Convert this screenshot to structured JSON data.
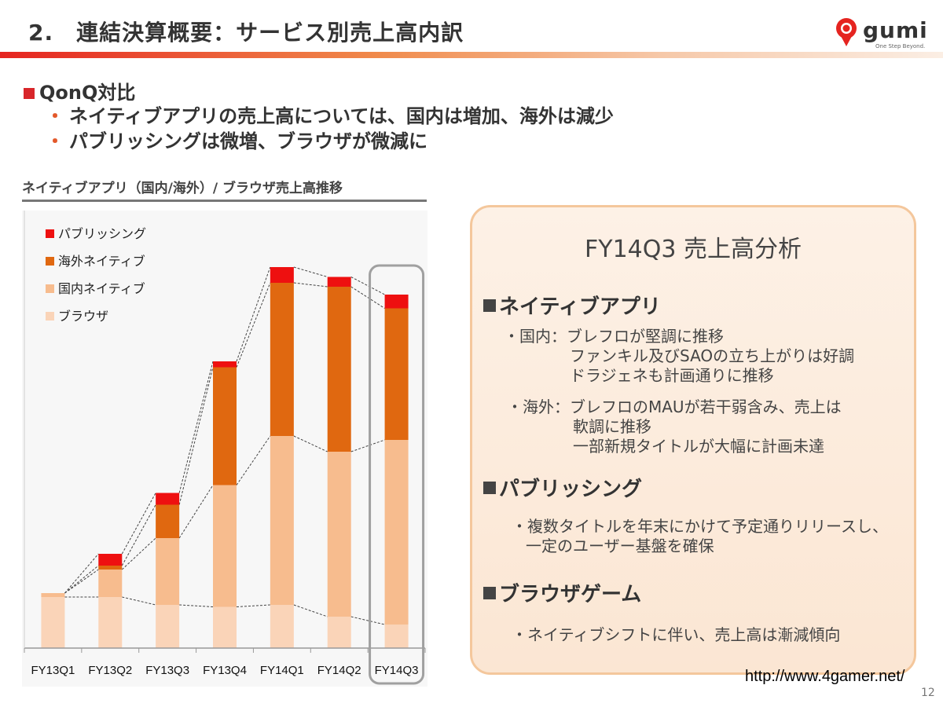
{
  "slide": {
    "title": "2.　連結決算概要：サービス別売上高内訳",
    "page_number": "12",
    "source_url": "http://www.4gamer.net/"
  },
  "logo": {
    "word": "gumi",
    "tagline": "One Step Beyond."
  },
  "qonq": {
    "heading": "QonQ対比",
    "points": [
      "ネイティブアプリの売上高については、国内は増加、海外は減少",
      "パブリッシングは微増、ブラウザが微減に"
    ]
  },
  "chart_heading": "ネイティブアプリ（国内/海外）/ ブラウザ売上高推移",
  "chart_data": {
    "type": "bar",
    "stacked": true,
    "categories": [
      "FY13Q1",
      "FY13Q2",
      "FY13Q3",
      "FY13Q4",
      "FY14Q1",
      "FY14Q2",
      "FY14Q3"
    ],
    "series": [
      {
        "name": "ブラウザ",
        "color": "#fad4b8",
        "values": [
          13,
          13,
          11,
          10.5,
          11,
          8,
          6
        ]
      },
      {
        "name": "国内ネイティブ",
        "color": "#f7bc8e",
        "values": [
          1,
          7,
          17,
          31,
          43,
          42,
          47
        ]
      },
      {
        "name": "海外ネイティブ",
        "color": "#e06810",
        "values": [
          0,
          1,
          8.5,
          30,
          39,
          42,
          33.5
        ]
      },
      {
        "name": "パブリッシング",
        "color": "#ee1010",
        "values": [
          0,
          3,
          3,
          1.5,
          4,
          2.5,
          3.5
        ]
      }
    ],
    "legend": [
      "パブリッシング",
      "海外ネイティブ",
      "国内ネイティブ",
      "ブラウザ"
    ],
    "legend_position": "top-left",
    "ylim": [
      0,
      100
    ],
    "y_axis_visible": false,
    "grid": false,
    "connector_lines": true,
    "highlighted_category": "FY14Q3"
  },
  "analysis": {
    "title": "FY14Q3 売上高分析",
    "sections": [
      {
        "heading": "ネイティブアプリ",
        "lines": [
          "・国内：ブレフロが堅調に推移",
          "ファンキル及びSAOの立ち上がりは好調",
          "ドラジェネも計画通りに推移",
          "・海外：ブレフロのMAUが若干弱含み、売上は",
          "軟調に推移",
          "一部新規タイトルが大幅に計画未達"
        ]
      },
      {
        "heading": "パブリッシング",
        "lines": [
          "・複数タイトルを年末にかけて予定通りリリースし、",
          "一定のユーザー基盤を確保"
        ]
      },
      {
        "heading": "ブラウザゲーム",
        "lines": [
          "・ネイティブシフトに伴い、売上高は漸減傾向"
        ]
      }
    ]
  }
}
